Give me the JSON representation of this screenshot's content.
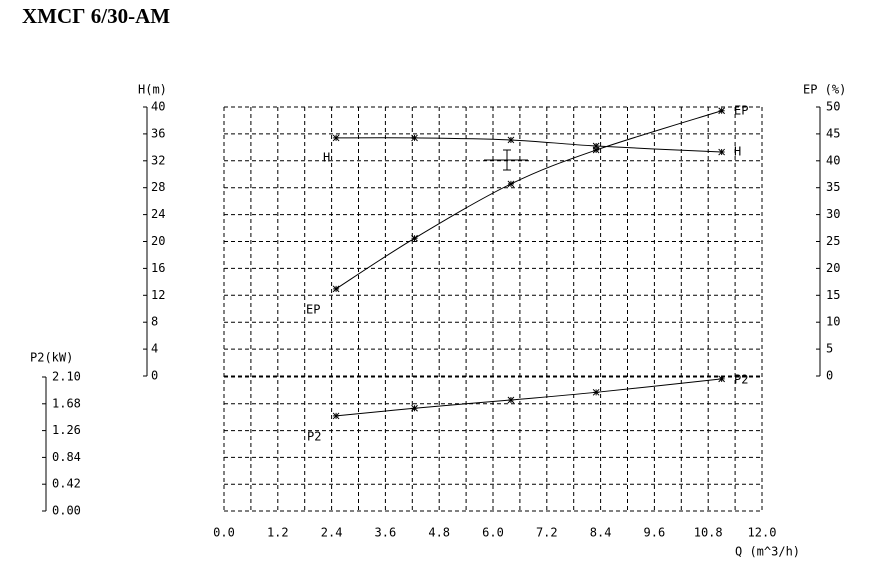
{
  "chart_data": {
    "type": "line",
    "title": "ХМСГ 6/30-АМ",
    "x_label": "Q (m^3/h)",
    "y_label": "H(m)",
    "y2_label": "EP (%)",
    "y3_label": "P2(kW)",
    "xlim": [
      0,
      12
    ],
    "xticks": [
      {
        "value": 0,
        "label": "0.0"
      },
      {
        "value": 1.2,
        "label": "1.2"
      },
      {
        "value": 2.4,
        "label": "2.4"
      },
      {
        "value": 3.6,
        "label": "3.6"
      },
      {
        "value": 4.8,
        "label": "4.8"
      },
      {
        "value": 6,
        "label": "6.0"
      },
      {
        "value": 7.2,
        "label": "7.2"
      },
      {
        "value": 8.4,
        "label": "8.4"
      },
      {
        "value": 9.6,
        "label": "9.6"
      },
      {
        "value": 10.8,
        "label": "10.8"
      },
      {
        "value": 12,
        "label": "12.0"
      }
    ],
    "ylim": [
      0,
      40
    ],
    "yticks": [
      0,
      4,
      8,
      12,
      16,
      20,
      24,
      28,
      32,
      36,
      40
    ],
    "y2lim": [
      0,
      50
    ],
    "y2ticks": [
      0,
      5,
      10,
      15,
      20,
      25,
      30,
      35,
      40,
      45,
      50
    ],
    "y3lim": [
      0,
      2.1
    ],
    "y3ticks": [
      {
        "value": 0,
        "label": "0.00"
      },
      0.42,
      0.84,
      1.26,
      1.68,
      {
        "value": 2.1,
        "label": "2.10"
      }
    ],
    "grid": true,
    "series": [
      {
        "name": "H",
        "color": "#000000",
        "axis": "y",
        "x": [
          2.5,
          4.25,
          6.4,
          8.3,
          11.1
        ],
        "values": [
          35.4,
          35.4,
          35.1,
          34.2,
          33.3
        ]
      },
      {
        "name": "EP",
        "color": "#000000",
        "axis": "y2",
        "x": [
          2.5,
          4.25,
          6.4,
          8.3,
          11.1
        ],
        "values": [
          16.2,
          25.6,
          35.7,
          42.0,
          49.3
        ]
      },
      {
        "name": "P2",
        "color": "#000000",
        "axis": "y3",
        "x": [
          2.5,
          4.25,
          6.4,
          8.3,
          11.1
        ],
        "values": [
          1.49,
          1.61,
          1.74,
          1.86,
          2.07
        ]
      }
    ]
  }
}
